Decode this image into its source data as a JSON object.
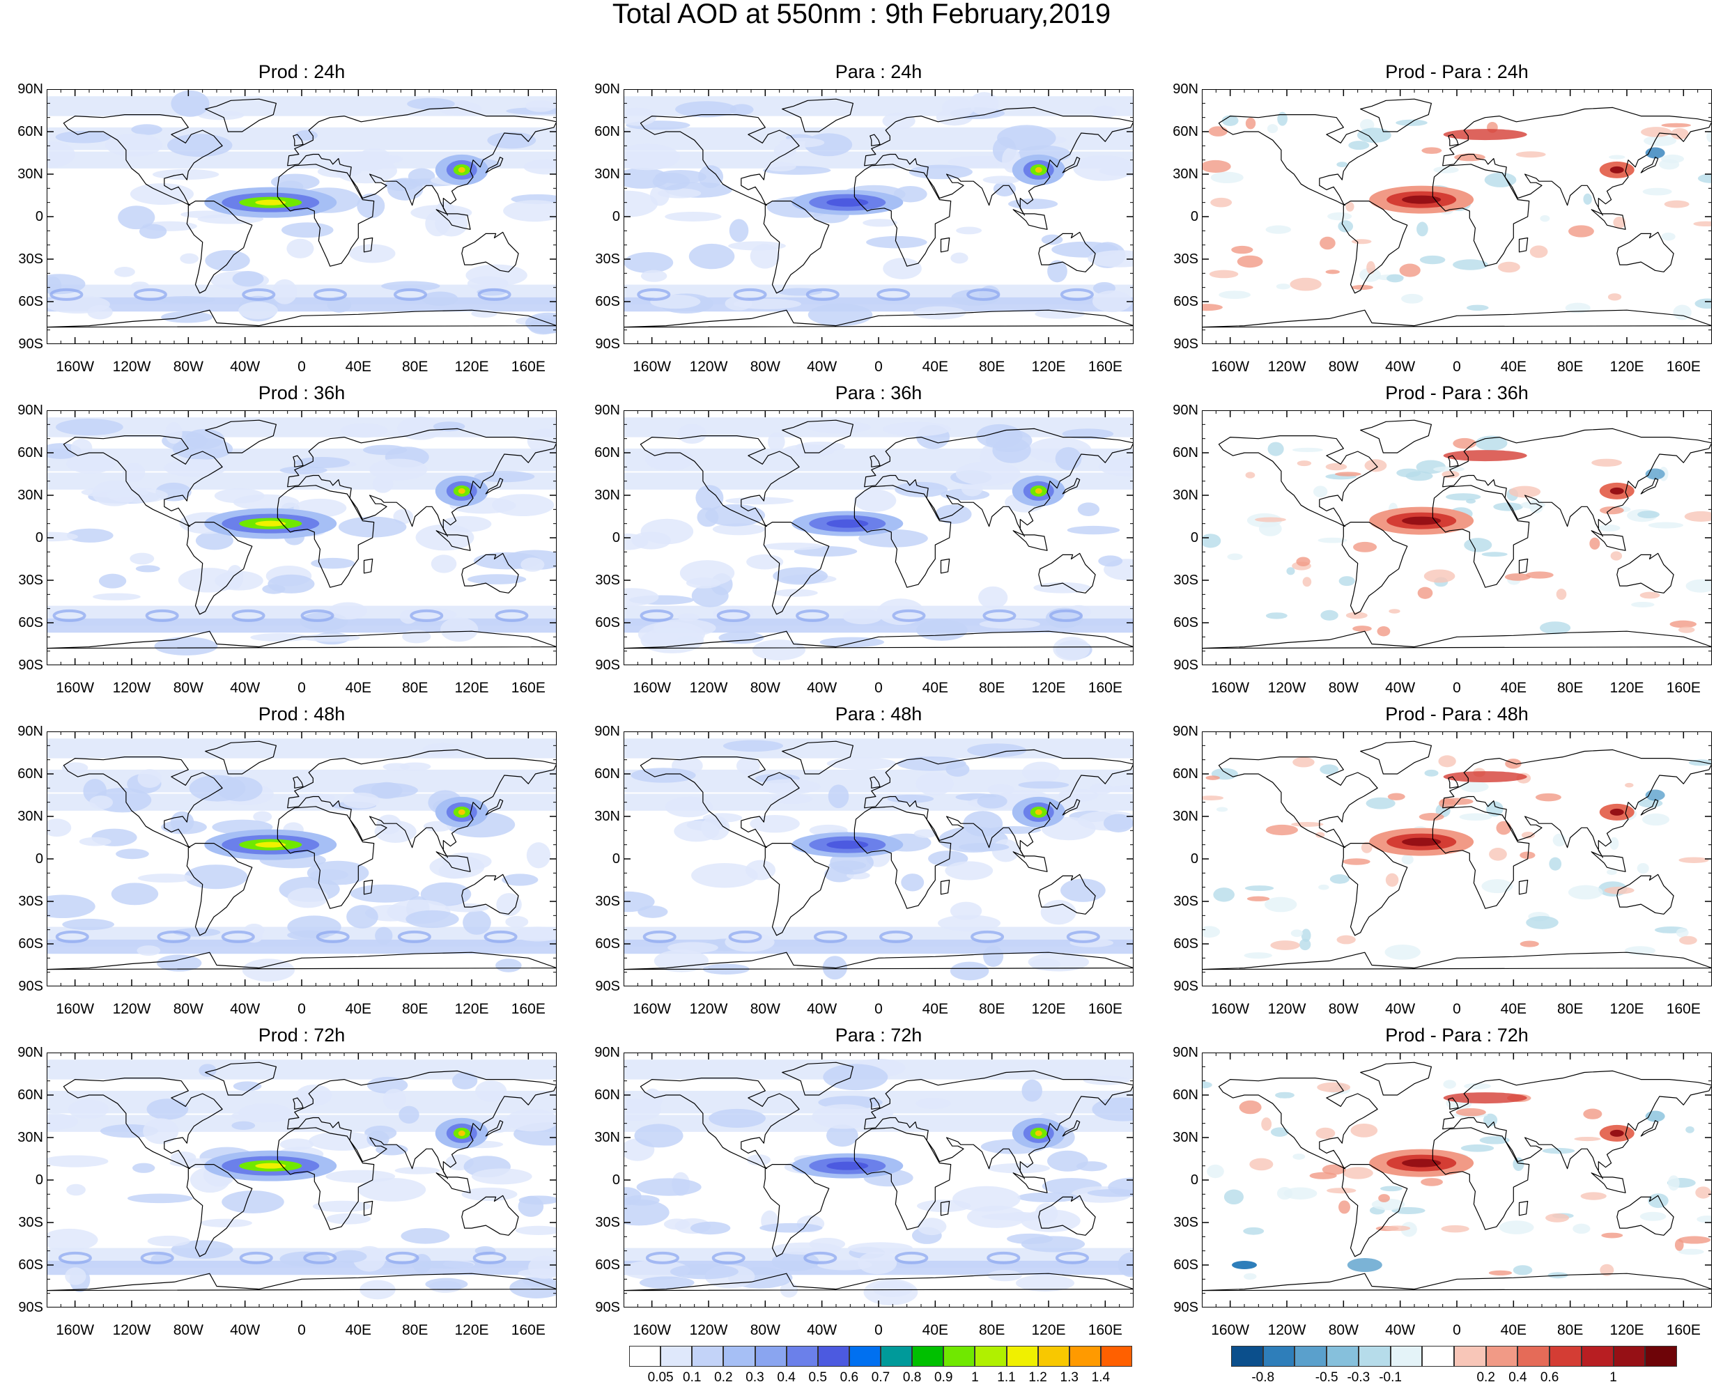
{
  "title": "Total AOD at 550nm : 9th February,2019",
  "lat_ticks": [
    "90N",
    "60N",
    "30N",
    "0",
    "30S",
    "60S",
    "90S"
  ],
  "lon_ticks": [
    "160W",
    "120W",
    "80W",
    "40W",
    "0",
    "40E",
    "80E",
    "120E",
    "160E"
  ],
  "panels": [
    {
      "title": "Prod : 24h",
      "kind": "aod",
      "level": 0
    },
    {
      "title": "Para : 24h",
      "kind": "aod",
      "level": 1
    },
    {
      "title": "Prod - Para : 24h",
      "kind": "diff",
      "level": 0
    },
    {
      "title": "Prod : 36h",
      "kind": "aod",
      "level": 0
    },
    {
      "title": "Para : 36h",
      "kind": "aod",
      "level": 1
    },
    {
      "title": "Prod - Para : 36h",
      "kind": "diff",
      "level": 1
    },
    {
      "title": "Prod : 48h",
      "kind": "aod",
      "level": 0
    },
    {
      "title": "Para : 48h",
      "kind": "aod",
      "level": 1
    },
    {
      "title": "Prod - Para : 48h",
      "kind": "diff",
      "level": 1
    },
    {
      "title": "Prod : 72h",
      "kind": "aod",
      "level": 0
    },
    {
      "title": "Para : 72h",
      "kind": "aod",
      "level": 1
    },
    {
      "title": "Prod - Para : 72h",
      "kind": "diff",
      "level": 2
    }
  ],
  "aod_colorbar": {
    "labels": [
      "0.05",
      "0.1",
      "0.2",
      "0.3",
      "0.4",
      "0.5",
      "0.6",
      "0.7",
      "0.8",
      "0.9",
      "1",
      "1.1",
      "1.2",
      "1.3",
      "1.4"
    ],
    "colors": [
      "#ffffff",
      "#dfe8fb",
      "#c3d3f8",
      "#a6bff5",
      "#8aa5f0",
      "#6b80ea",
      "#4c5ae0",
      "#0070f0",
      "#009a9a",
      "#00c000",
      "#70e800",
      "#b0f000",
      "#f0f000",
      "#f8c800",
      "#ff9a00",
      "#ff6000"
    ]
  },
  "diff_colorbar": {
    "labels": [
      "-0.8",
      "-0.5",
      "-0.3",
      "-0.1",
      "0.2",
      "0.4",
      "0.6",
      "1"
    ],
    "colors": [
      "#0b4f8c",
      "#2e7eba",
      "#5aa0cc",
      "#86c0dc",
      "#b6dcea",
      "#e4f3f8",
      "#ffffff",
      "#f8c6b8",
      "#f19a86",
      "#e56b58",
      "#d43d34",
      "#b81e22",
      "#961015",
      "#6e0408"
    ]
  }
}
